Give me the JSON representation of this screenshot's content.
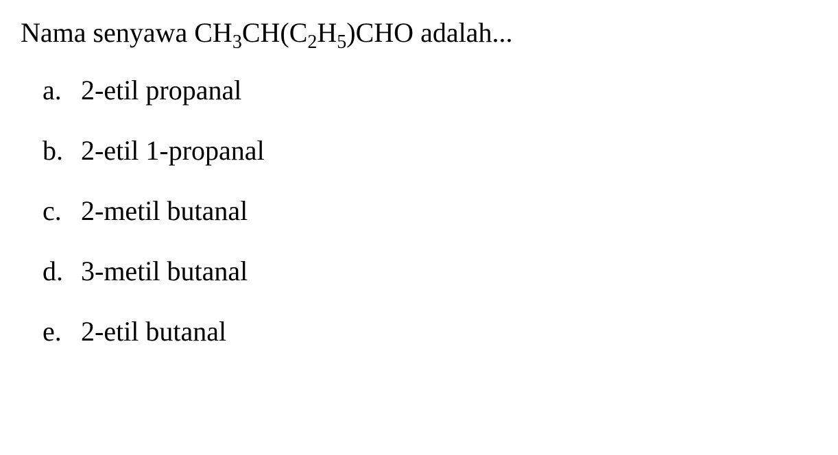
{
  "question": {
    "prefix": "Nama senyawa ",
    "formula_parts": {
      "p1": "CH",
      "s1": "3",
      "p2": "CH(C",
      "s2": "2",
      "p3": "H",
      "s3": "5",
      "p4": ")CHO"
    },
    "suffix": " adalah..."
  },
  "options": [
    {
      "letter": "a.",
      "text": "2-etil propanal"
    },
    {
      "letter": "b.",
      "text": "2-etil 1-propanal"
    },
    {
      "letter": "c.",
      "text": "2-metil butanal"
    },
    {
      "letter": "d.",
      "text": "3-metil butanal"
    },
    {
      "letter": "e.",
      "text": "2-etil butanal"
    }
  ],
  "styling": {
    "font_family": "Times New Roman",
    "font_size_pt": 30,
    "text_color": "#000000",
    "background_color": "#ffffff"
  }
}
